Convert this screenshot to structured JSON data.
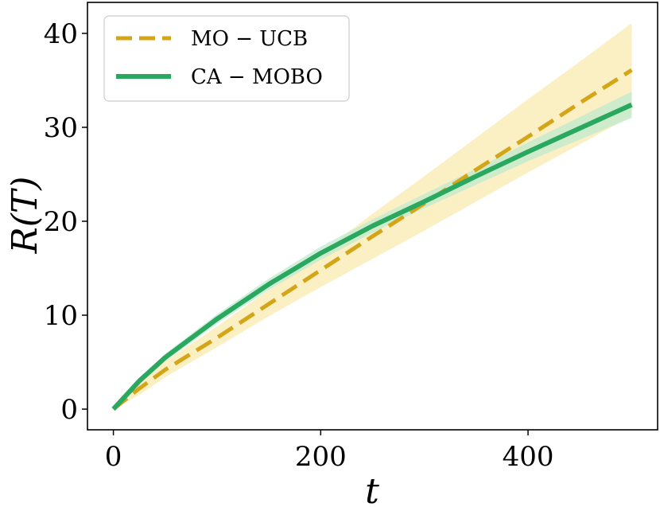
{
  "chart_data": {
    "type": "line",
    "title": "",
    "xlabel": "t",
    "ylabel": "R(T)",
    "xlim": [
      -25,
      525
    ],
    "ylim": [
      -2.2,
      43.3
    ],
    "xticks": [
      0,
      200,
      400
    ],
    "yticks": [
      0,
      10,
      20,
      30,
      40
    ],
    "legend_position": "top-left",
    "grid": false,
    "series": [
      {
        "name": "MO − UCB",
        "color": "#d4a518",
        "band_color": "#f9e9b0",
        "style": "dashed",
        "x": [
          0,
          25,
          50,
          100,
          150,
          200,
          250,
          300,
          350,
          400,
          450,
          500
        ],
        "values": [
          0,
          2.2,
          4.2,
          7.6,
          11.2,
          14.8,
          18.4,
          21.9,
          25.5,
          29.0,
          32.6,
          36.1
        ],
        "lower": [
          0,
          1.5,
          3.4,
          6.6,
          9.9,
          13.0,
          16.0,
          19.0,
          22.1,
          25.2,
          28.2,
          31.2
        ],
        "upper": [
          0,
          2.9,
          5.1,
          8.8,
          12.7,
          16.6,
          20.8,
          24.8,
          28.9,
          33.0,
          37.0,
          41.1
        ]
      },
      {
        "name": "CA − MOBO",
        "color": "#2aa860",
        "band_color": "#bfe9cf",
        "style": "solid",
        "x": [
          0,
          25,
          50,
          100,
          150,
          200,
          250,
          300,
          350,
          400,
          450,
          500
        ],
        "values": [
          0,
          3.0,
          5.5,
          9.6,
          13.3,
          16.6,
          19.5,
          22.1,
          24.8,
          27.4,
          29.9,
          32.4
        ],
        "lower": [
          0,
          2.7,
          5.1,
          9.1,
          12.7,
          15.9,
          18.8,
          21.4,
          23.9,
          26.4,
          28.7,
          31.0
        ],
        "upper": [
          0,
          3.3,
          5.9,
          10.1,
          13.9,
          17.3,
          20.2,
          22.9,
          25.6,
          28.4,
          31.1,
          33.8
        ]
      }
    ]
  }
}
